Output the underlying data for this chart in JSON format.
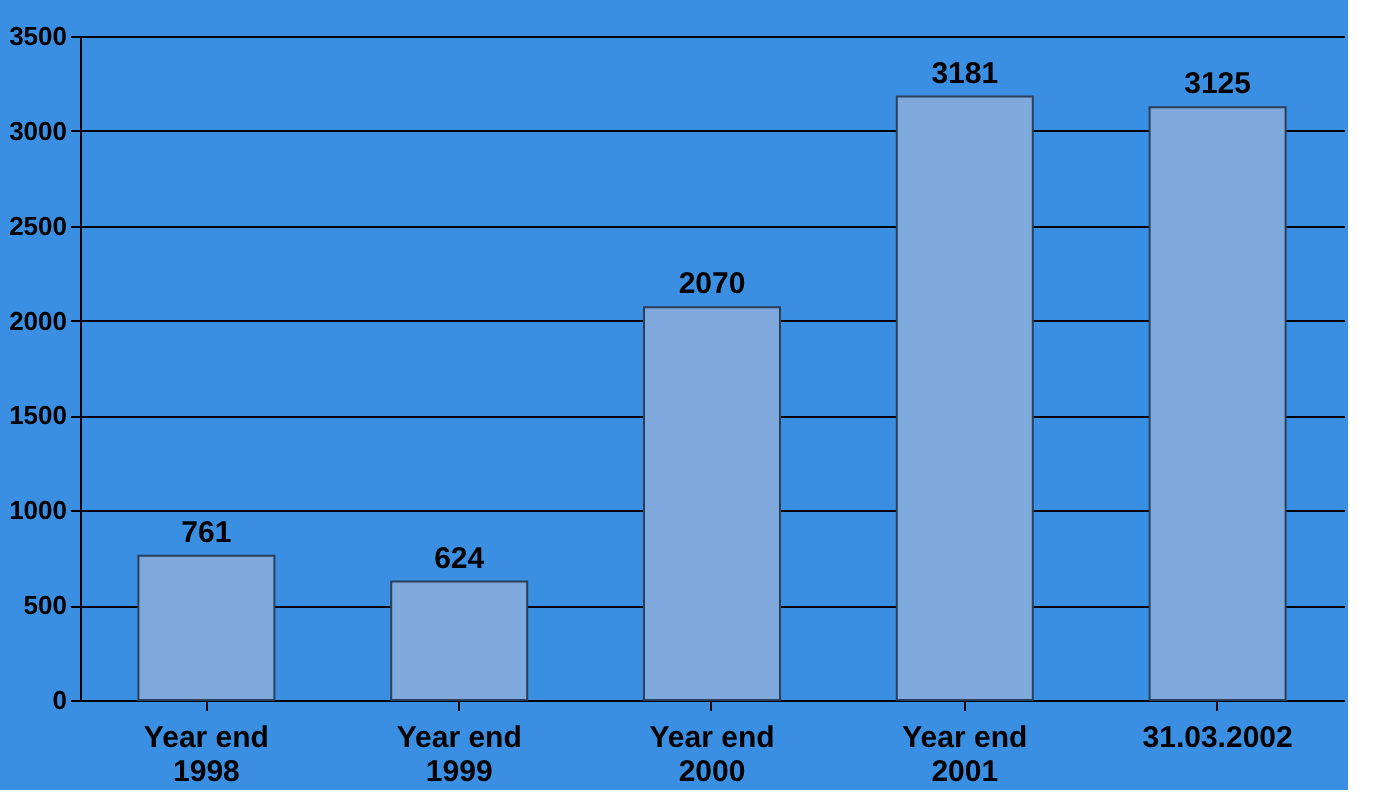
{
  "chart_data": {
    "type": "bar",
    "categories": [
      "Year end\n1998",
      "Year end\n1999",
      "Year end\n2000",
      "Year end\n2001",
      "31.03.2002"
    ],
    "values": [
      761,
      624,
      2070,
      3181,
      3125
    ],
    "color": "#7fa9dc",
    "ylim": [
      0,
      3500
    ],
    "yticks": [
      0,
      500,
      1000,
      1500,
      2000,
      2500,
      3000,
      3500
    ],
    "grid": "y",
    "data_labels": true
  }
}
